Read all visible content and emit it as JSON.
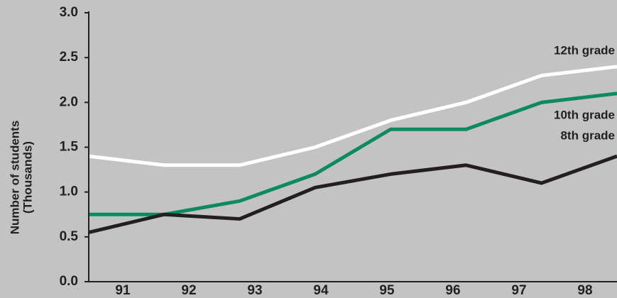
{
  "chart_data": {
    "type": "line",
    "ylabel": [
      "Number of students",
      "(Thousands)"
    ],
    "categories": [
      "91",
      "92",
      "93",
      "94",
      "95",
      "96",
      "97",
      "98"
    ],
    "series": [
      {
        "name": "12th grade",
        "color": "#ffffff",
        "values": [
          1.4,
          1.3,
          1.3,
          1.5,
          1.8,
          2.0,
          2.3,
          2.4
        ]
      },
      {
        "name": "10th grade",
        "color": "#0e8a63",
        "values": [
          0.75,
          0.75,
          0.9,
          1.2,
          1.7,
          1.7,
          2.0,
          2.1
        ]
      },
      {
        "name": "8th grade",
        "color": "#231f20",
        "values": [
          0.55,
          0.75,
          0.7,
          1.05,
          1.2,
          1.3,
          1.1,
          1.4
        ]
      }
    ],
    "ylim": [
      0,
      3
    ],
    "yticks": [
      {
        "value": 0,
        "label": "0.0"
      },
      0.5,
      {
        "value": 1,
        "label": "1.0"
      },
      1.5,
      {
        "value": 2,
        "label": "2.0"
      },
      2.5,
      {
        "value": 3,
        "label": "3.0"
      }
    ]
  }
}
